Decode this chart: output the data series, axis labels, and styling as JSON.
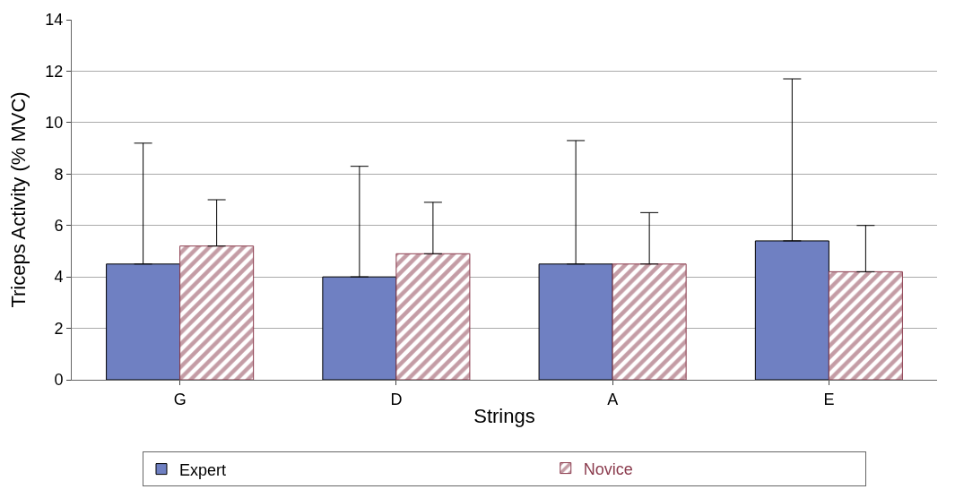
{
  "chart_data": {
    "type": "bar",
    "xlabel": "Strings",
    "ylabel": "Triceps Activity (% MVC)",
    "categories": [
      "G",
      "D",
      "A",
      "E"
    ],
    "series": [
      {
        "name": "Expert",
        "color": "#6f80c2",
        "values": [
          4.5,
          4.0,
          4.5,
          5.4
        ],
        "errors": [
          4.7,
          4.3,
          4.8,
          6.3
        ]
      },
      {
        "name": "Novice",
        "color": "#8a3a4c",
        "values": [
          5.2,
          4.9,
          4.5,
          4.2
        ],
        "errors": [
          1.8,
          2.0,
          2.0,
          1.8
        ]
      }
    ],
    "ylim": [
      0,
      14
    ],
    "yticks": [
      0,
      2,
      4,
      6,
      8,
      10,
      12,
      14
    ],
    "grid": "y",
    "legend": "bottom"
  }
}
